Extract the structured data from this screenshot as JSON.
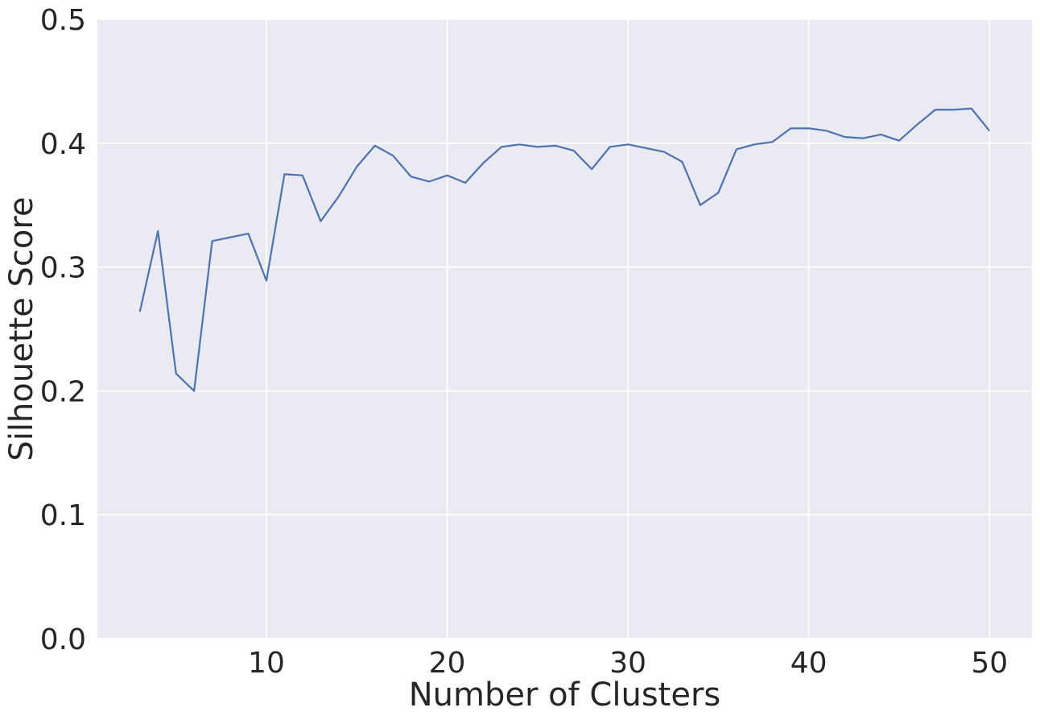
{
  "chart_data": {
    "type": "line",
    "title": "",
    "xlabel": "Number of Clusters",
    "ylabel": "Silhouette Score",
    "xlim": [
      0.65,
      52.35
    ],
    "ylim": [
      0.0,
      0.5
    ],
    "x_ticks": [
      10,
      20,
      30,
      40,
      50
    ],
    "x_tick_labels": [
      "10",
      "20",
      "30",
      "40",
      "50"
    ],
    "y_ticks": [
      0.0,
      0.1,
      0.2,
      0.3,
      0.4,
      0.5
    ],
    "y_tick_labels": [
      "0.0",
      "0.1",
      "0.2",
      "0.3",
      "0.4",
      "0.5"
    ],
    "grid": true,
    "legend": "none",
    "background_color": "#eaeaf2",
    "grid_color": "#ffffff",
    "line_color": "#4c72b0",
    "x": [
      3,
      4,
      5,
      6,
      7,
      8,
      9,
      10,
      11,
      12,
      13,
      14,
      15,
      16,
      17,
      18,
      19,
      20,
      21,
      22,
      23,
      24,
      25,
      26,
      27,
      28,
      29,
      30,
      31,
      32,
      33,
      34,
      35,
      36,
      37,
      38,
      39,
      40,
      41,
      42,
      43,
      44,
      45,
      46,
      47,
      48,
      49,
      50
    ],
    "series": [
      {
        "values": [
          0.264,
          0.329,
          0.214,
          0.2,
          0.321,
          0.324,
          0.327,
          0.289,
          0.375,
          0.374,
          0.337,
          0.357,
          0.381,
          0.398,
          0.39,
          0.373,
          0.369,
          0.374,
          0.368,
          0.384,
          0.397,
          0.399,
          0.397,
          0.398,
          0.394,
          0.379,
          0.397,
          0.399,
          0.396,
          0.393,
          0.385,
          0.35,
          0.36,
          0.395,
          0.399,
          0.401,
          0.412,
          0.412,
          0.41,
          0.405,
          0.404,
          0.407,
          0.402,
          0.415,
          0.427,
          0.427,
          0.428,
          0.41
        ]
      }
    ]
  }
}
